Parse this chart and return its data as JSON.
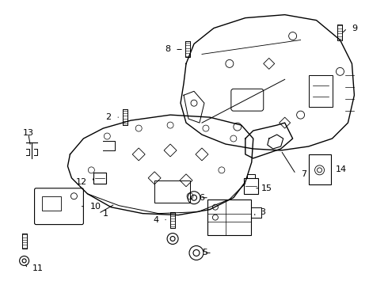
{
  "background": "#ffffff",
  "line_color": "#000000",
  "lw": 1.0,
  "figsize": [
    4.9,
    3.6
  ],
  "dpi": 100
}
